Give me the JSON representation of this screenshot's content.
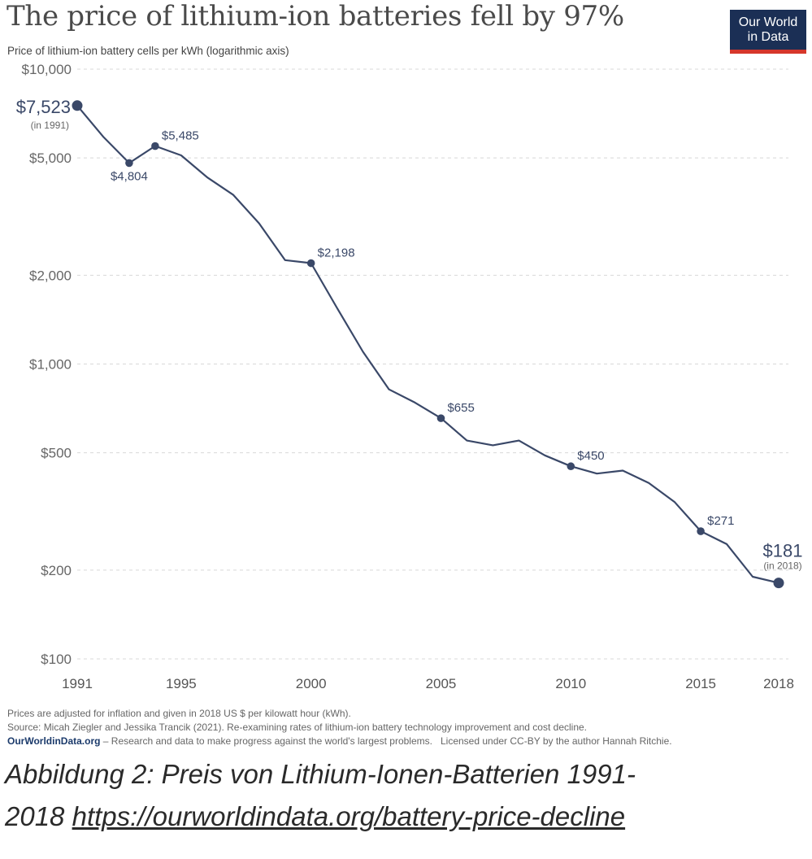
{
  "header": {
    "title": "The price of lithium-ion batteries fell by 97%",
    "subtitle": "Price of lithium-ion battery cells per kWh (logarithmic axis)",
    "logo_line1": "Our World",
    "logo_line2": "in Data"
  },
  "chart_data": {
    "type": "line",
    "title": "The price of lithium-ion batteries fell by 97%",
    "ylabel": "Price of lithium-ion battery cells per kWh (logarithmic axis)",
    "yscale": "log",
    "ylim": [
      100,
      10000
    ],
    "xlim": [
      1991,
      2018
    ],
    "grid": "horizontal dashed",
    "x_ticks": [
      1991,
      1995,
      2000,
      2005,
      2010,
      2015,
      2018
    ],
    "x_tick_labels": [
      "1991",
      "1995",
      "2000",
      "2005",
      "2010",
      "2015",
      "2018"
    ],
    "y_ticks": [
      100,
      200,
      500,
      1000,
      2000,
      5000,
      10000
    ],
    "y_tick_labels": [
      "$100",
      "$200",
      "$500",
      "$1,000",
      "$2,000",
      "$5,000",
      "$10,000"
    ],
    "x": [
      1991,
      1992,
      1993,
      1994,
      1995,
      1996,
      1997,
      1998,
      1999,
      2000,
      2001,
      2002,
      2003,
      2004,
      2005,
      2006,
      2007,
      2008,
      2009,
      2010,
      2011,
      2012,
      2013,
      2014,
      2015,
      2016,
      2017,
      2018
    ],
    "values": [
      7523,
      5900,
      4804,
      5485,
      5100,
      4300,
      3750,
      3000,
      2250,
      2198,
      1550,
      1100,
      820,
      740,
      655,
      550,
      530,
      550,
      490,
      450,
      425,
      435,
      395,
      340,
      271,
      245,
      190,
      181
    ],
    "labeled_points": [
      {
        "x": 1991,
        "value": 7523,
        "label": "$7,523",
        "note": "(in 1991)"
      },
      {
        "x": 1993,
        "value": 4804,
        "label": "$4,804"
      },
      {
        "x": 1994,
        "value": 5485,
        "label": "$5,485"
      },
      {
        "x": 2000,
        "value": 2198,
        "label": "$2,198"
      },
      {
        "x": 2005,
        "value": 655,
        "label": "$655"
      },
      {
        "x": 2010,
        "value": 450,
        "label": "$450"
      },
      {
        "x": 2015,
        "value": 271,
        "label": "$271"
      },
      {
        "x": 2018,
        "value": 181,
        "label": "$181",
        "note": "(in 2018)"
      }
    ],
    "line_color": "#3a4868"
  },
  "footer": {
    "note": "Prices are adjusted for inflation and given in 2018 US $ per kilowatt hour (kWh).",
    "source": "Source: Micah Ziegler and Jessika Trancik (2021). Re-examining rates of lithium-ion battery technology improvement and cost decline.",
    "org": "OurWorldinData.org",
    "org_text": " – Research and data to make progress against the world's largest problems.",
    "license": "Licensed under CC-BY by the author Hannah Ritchie."
  },
  "caption": {
    "line1": "Abbildung 2: Preis von Lithium-Ionen-Batterien 1991-",
    "line2_prefix": "2018 ",
    "link": "https://ourworldindata.org/battery-price-decline"
  }
}
